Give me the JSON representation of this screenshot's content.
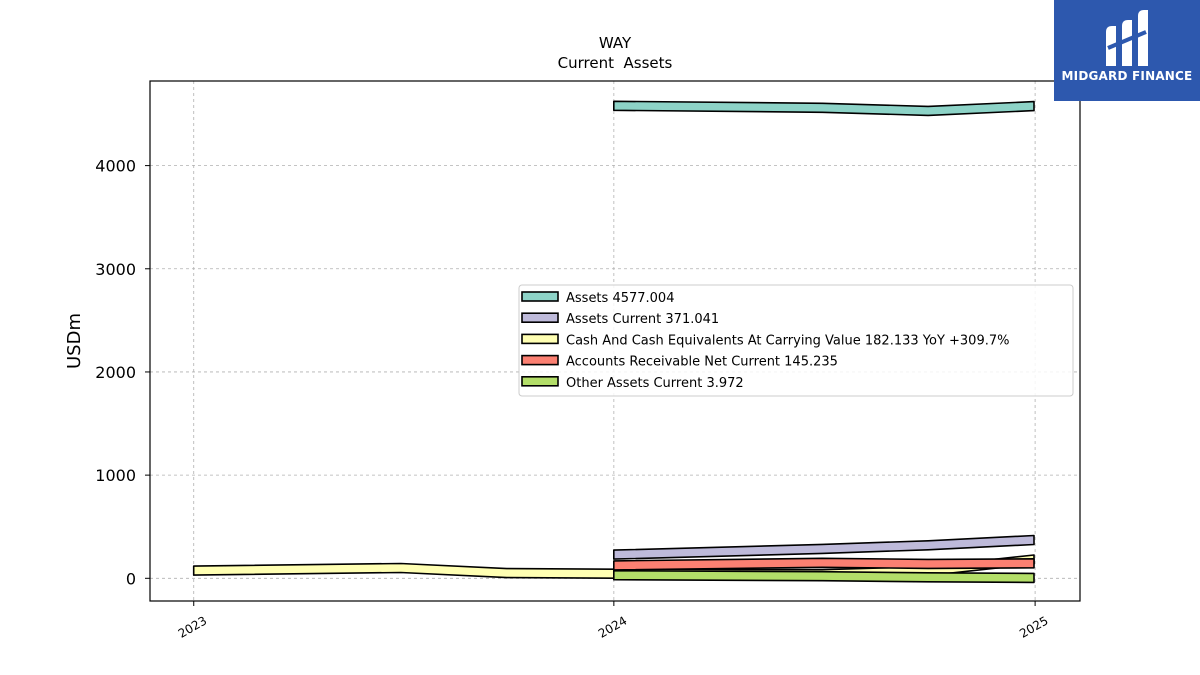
{
  "chart_data": {
    "type": "area",
    "title": "WAY",
    "subtitle": "Current  Assets",
    "ylabel": "USDm",
    "xlabel": "",
    "x_ticks": [
      "2023",
      "2024",
      "2025"
    ],
    "y_ticks": [
      "0",
      "1000",
      "2000",
      "3000",
      "4000"
    ],
    "ylim": [
      -220,
      4820
    ],
    "xlim": [
      "2022-11-24",
      "2025-02-09"
    ],
    "grid": true,
    "legend_position": "center-right",
    "series": [
      {
        "name": "Assets",
        "legend_label": "Assets  4577.004",
        "color": "#8dd3c7",
        "x": [
          "2024-01-01",
          "2024-06-30",
          "2024-09-30",
          "2024-12-31"
        ],
        "y": [
          4580,
          4560,
          4530,
          4577.004
        ]
      },
      {
        "name": "Assets Current",
        "legend_label": "Assets Current  371.041",
        "color": "#bebada",
        "x": [
          "2024-01-01",
          "2024-06-30",
          "2024-09-30",
          "2024-12-31"
        ],
        "y": [
          230,
          285,
          320,
          371.041
        ]
      },
      {
        "name": "Cash And Cash Equivalents At Carrying Value",
        "legend_label": "Cash And Cash Equivalents At Carrying Value  182.133 YoY +309.7%",
        "color": "#ffffb3",
        "x": [
          "2023-01-01",
          "2023-06-30",
          "2023-09-30",
          "2023-12-31",
          "2024-06-30",
          "2024-09-30",
          "2024-12-31"
        ],
        "y": [
          75,
          100,
          50,
          45,
          40,
          70,
          182.133
        ]
      },
      {
        "name": "Accounts Receivable Net Current",
        "legend_label": "Accounts Receivable Net Current  145.235",
        "color": "#fb8072",
        "x": [
          "2024-01-01",
          "2024-06-30",
          "2024-09-30",
          "2024-12-31"
        ],
        "y": [
          125,
          150,
          140,
          145.235
        ]
      },
      {
        "name": "Other Assets Current",
        "legend_label": "Other Assets Current  3.972",
        "color": "#b3de69",
        "x": [
          "2024-01-01",
          "2024-06-30",
          "2024-09-30",
          "2024-12-31"
        ],
        "y": [
          30,
          20,
          10,
          3.972
        ]
      }
    ]
  },
  "logo": {
    "text": "MIDGARD FINANCE",
    "background": "#2d58ae"
  }
}
